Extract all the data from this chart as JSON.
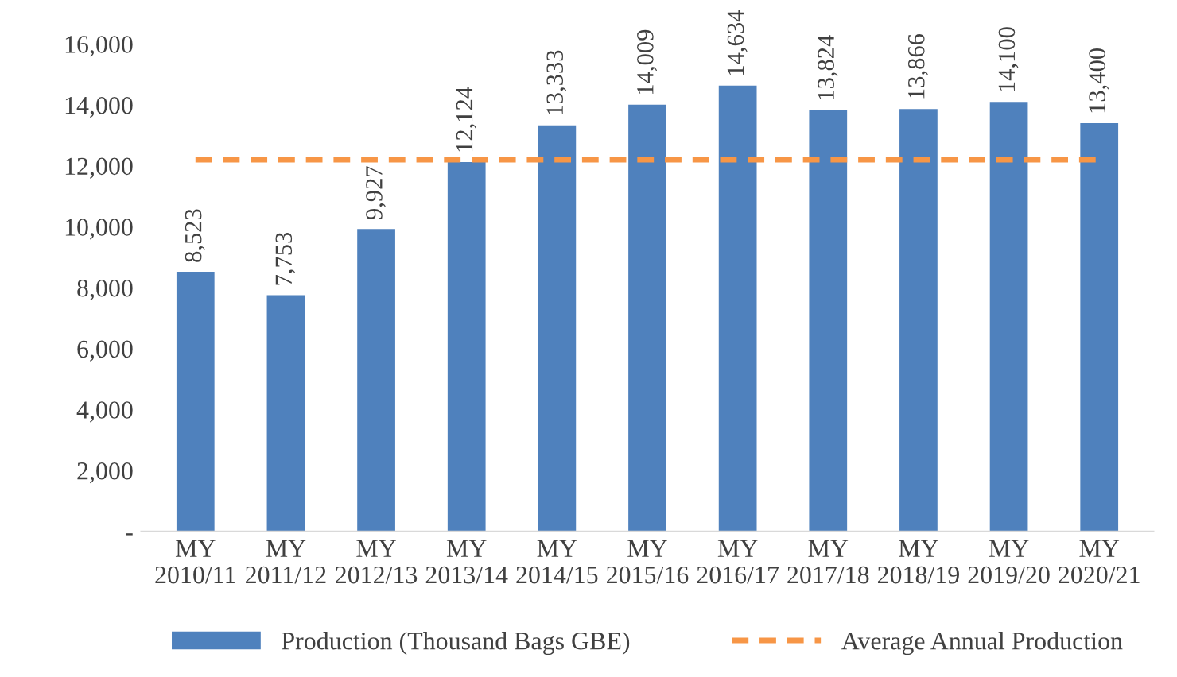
{
  "chart_data": {
    "type": "bar",
    "categories": [
      "MY\n2010/11",
      "MY\n2011/12",
      "MY\n2012/13",
      "MY\n2013/14",
      "MY\n2014/15",
      "MY\n2015/16",
      "MY\n2016/17",
      "MY\n2017/18",
      "MY\n2018/19",
      "MY\n2019/20",
      "MY\n2020/21"
    ],
    "series": [
      {
        "name": "Production (Thousand Bags GBE)",
        "color": "#4f81bd",
        "values": [
          8523,
          7753,
          9927,
          12124,
          13333,
          14009,
          14634,
          13824,
          13866,
          14100,
          13400
        ],
        "value_labels": [
          "8,523",
          "7,753",
          "9,927",
          "12,124",
          "13,333",
          "14,009",
          "14,634",
          "13,824",
          "13,866",
          "14,100",
          "13,400"
        ]
      },
      {
        "name": "Average Annual Production",
        "type": "line",
        "color": "#f79646",
        "line_style": "dashed",
        "values": [
          12200,
          12200,
          12200,
          12200,
          12200,
          12200,
          12200,
          12200,
          12200,
          12200,
          12200
        ]
      }
    ],
    "ylim": [
      0,
      16000
    ],
    "yticks": [
      {
        "value": 0,
        "label": "-"
      },
      {
        "value": 2000,
        "label": "2,000"
      },
      {
        "value": 4000,
        "label": "4,000"
      },
      {
        "value": 6000,
        "label": "6,000"
      },
      {
        "value": 8000,
        "label": "8,000"
      },
      {
        "value": 10000,
        "label": "10,000"
      },
      {
        "value": 12000,
        "label": "12,000"
      },
      {
        "value": 14000,
        "label": "14,000"
      },
      {
        "value": 16000,
        "label": "16,000"
      }
    ],
    "grid": false,
    "legend": "bottom"
  }
}
